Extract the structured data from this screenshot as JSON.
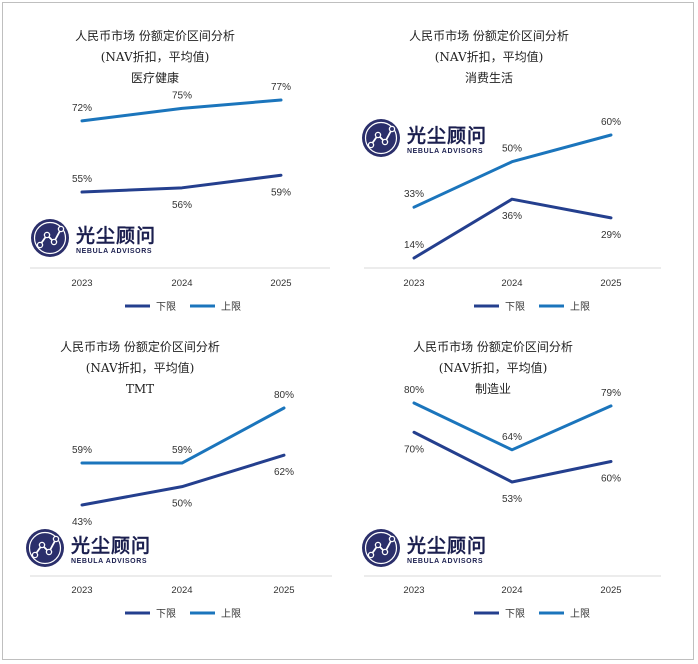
{
  "colors": {
    "lower": "#243F8E",
    "upper": "#1B75BC",
    "axis": "#d9d9d9",
    "logo": "#2b2f6b"
  },
  "logo": {
    "cn": "光尘顾问",
    "en": "NEBULA ADVISORS"
  },
  "chart_data": [
    {
      "type": "line",
      "title": [
        "人民币市场 份额定价区间分析",
        "(NAV折扣，平均值)",
        "医疗健康"
      ],
      "categories": [
        "2023",
        "2024",
        "2025"
      ],
      "series": [
        {
          "name": "下限",
          "values": [
            55,
            56,
            59
          ],
          "labels": [
            "55%",
            "56%",
            "59%"
          ]
        },
        {
          "name": "上限",
          "values": [
            72,
            75,
            77
          ],
          "labels": [
            "72%",
            "75%",
            "77%"
          ]
        }
      ],
      "legend_position": "bottom",
      "ylim": [
        40,
        85
      ]
    },
    {
      "type": "line",
      "title": [
        "人民币市场 份额定价区间分析",
        "(NAV折扣，平均值)",
        "消费生活"
      ],
      "categories": [
        "2023",
        "2024",
        "2025"
      ],
      "series": [
        {
          "name": "下限",
          "values": [
            14,
            36,
            29
          ],
          "labels": [
            "14%",
            "36%",
            "29%"
          ]
        },
        {
          "name": "上限",
          "values": [
            33,
            50,
            60
          ],
          "labels": [
            "33%",
            "50%",
            "60%"
          ]
        }
      ],
      "legend_position": "bottom",
      "ylim": [
        10,
        65
      ]
    },
    {
      "type": "line",
      "title": [
        "人民币市场 份额定价区间分析",
        "(NAV折扣，平均值)",
        "TMT"
      ],
      "categories": [
        "2023",
        "2024",
        "2025"
      ],
      "series": [
        {
          "name": "下限",
          "values": [
            43,
            50,
            62
          ],
          "labels": [
            "43%",
            "50%",
            "62%"
          ]
        },
        {
          "name": "上限",
          "values": [
            59,
            59,
            80
          ],
          "labels": [
            "59%",
            "59%",
            "80%"
          ]
        }
      ],
      "legend_position": "bottom",
      "ylim": [
        40,
        85
      ]
    },
    {
      "type": "line",
      "title": [
        "人民币市场 份额定价区间分析",
        "(NAV折扣，平均值)",
        "制造业"
      ],
      "categories": [
        "2023",
        "2024",
        "2025"
      ],
      "series": [
        {
          "name": "下限",
          "values": [
            70,
            53,
            60
          ],
          "labels": [
            "70%",
            "53%",
            "60%"
          ]
        },
        {
          "name": "上限",
          "values": [
            80,
            64,
            79
          ],
          "labels": [
            "80%",
            "64%",
            "79%"
          ]
        }
      ],
      "legend_position": "bottom",
      "ylim": [
        45,
        85
      ]
    }
  ]
}
